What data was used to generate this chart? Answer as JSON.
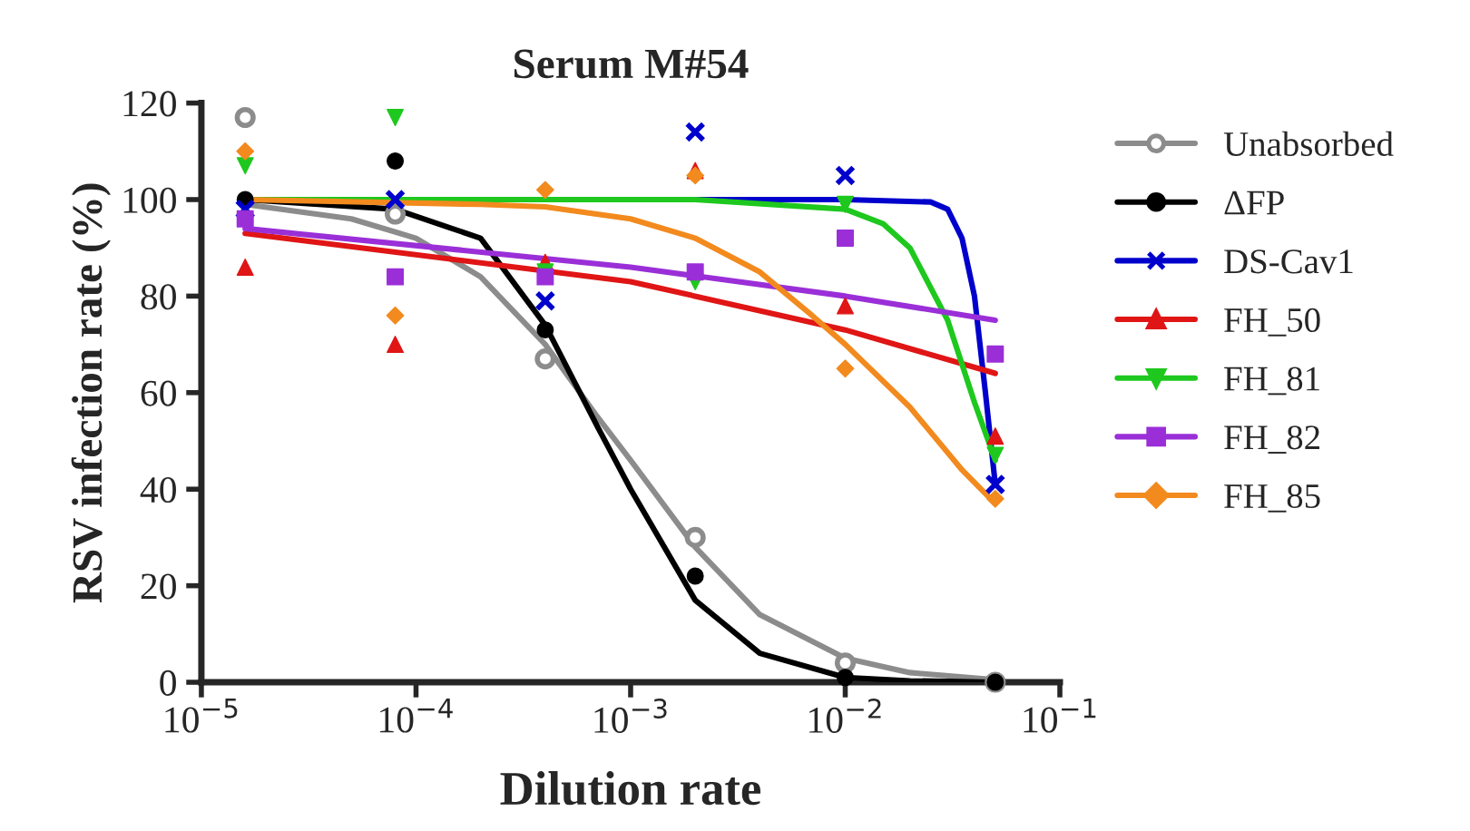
{
  "chart_data": {
    "type": "scatter",
    "title": "Serum M#54",
    "xlabel": "Dilution rate",
    "ylabel": "RSV infection rate (%)",
    "log": "x",
    "xlim": [
      1e-05,
      0.1
    ],
    "ylim": [
      0,
      120
    ],
    "xticks": [
      {
        "value": 1e-05,
        "label": "10$^{−5}$"
      },
      {
        "value": 0.0001,
        "label": "10$^{−4}$"
      },
      {
        "value": 0.001,
        "label": "10$^{−3}$"
      },
      {
        "value": 0.01,
        "label": "10$^{−2}$"
      },
      {
        "value": 0.1,
        "label": "10$^{−1}$"
      }
    ],
    "yticks": [
      0,
      20,
      40,
      60,
      80,
      100,
      120
    ],
    "grid": false,
    "legend": "right",
    "x": [
      1.6e-05,
      8e-05,
      0.0004,
      0.002,
      0.01,
      0.05
    ],
    "series": [
      {
        "name": "Unabsorbed",
        "marker": "circle_open",
        "color": "#8c8c8c",
        "values": [
          117,
          97,
          67,
          30,
          4,
          0
        ]
      },
      {
        "name": "ΔFP",
        "marker": "circle",
        "color": "#000000",
        "values": [
          100,
          108,
          73,
          22,
          1,
          0
        ]
      },
      {
        "name": "DS-Cav1",
        "marker": "cross",
        "color": "#0000cc",
        "values": [
          98,
          100,
          79,
          114,
          105,
          41
        ]
      },
      {
        "name": "FH_50",
        "marker": "triangle",
        "color": "#e01515",
        "values": [
          86,
          70,
          87,
          106,
          78,
          51
        ]
      },
      {
        "name": "FH_81",
        "marker": "triangle_down",
        "color": "#1ec81e",
        "values": [
          107,
          117,
          85,
          83,
          99,
          47
        ]
      },
      {
        "name": "FH_82",
        "marker": "square",
        "color": "#9a2fd8",
        "values": [
          96,
          84,
          84,
          85,
          92,
          68
        ]
      },
      {
        "name": "FH_85",
        "marker": "diamond",
        "color": "#f28a1e",
        "values": [
          110,
          76,
          102,
          105,
          65,
          38
        ]
      },
      {
        "type": "line",
        "color": "#8c8c8c",
        "x": [
          1.6e-05,
          5e-05,
          0.0001,
          0.0002,
          0.0004,
          0.0007,
          0.001,
          0.002,
          0.004,
          0.01,
          0.02,
          0.05
        ],
        "values": [
          99,
          96,
          92,
          84,
          70,
          55,
          46,
          28,
          14,
          5,
          2,
          0.5
        ]
      },
      {
        "type": "line",
        "color": "#000000",
        "x": [
          1.6e-05,
          8e-05,
          0.0002,
          0.0004,
          0.0007,
          0.001,
          0.002,
          0.004,
          0.01,
          0.02,
          0.05
        ],
        "values": [
          100,
          98,
          92,
          74,
          53,
          40,
          17,
          6,
          1,
          0.3,
          0
        ]
      },
      {
        "type": "line",
        "color": "#0000cc",
        "x": [
          1.6e-05,
          0.01,
          0.025,
          0.03,
          0.035,
          0.04,
          0.045,
          0.05
        ],
        "values": [
          100,
          100,
          99.5,
          98,
          92,
          80,
          60,
          41
        ]
      },
      {
        "type": "line",
        "color": "#e01515",
        "x": [
          1.6e-05,
          0.001,
          0.01,
          0.05
        ],
        "values": [
          93,
          83,
          73,
          64
        ]
      },
      {
        "type": "line",
        "color": "#1ec81e",
        "x": [
          1.6e-05,
          0.002,
          0.01,
          0.015,
          0.02,
          0.03,
          0.04,
          0.05
        ],
        "values": [
          100,
          100,
          98,
          95,
          90,
          75,
          58,
          46
        ]
      },
      {
        "type": "line",
        "color": "#9a2fd8",
        "x": [
          1.6e-05,
          0.001,
          0.01,
          0.05
        ],
        "values": [
          94,
          86,
          80,
          75
        ]
      },
      {
        "type": "line",
        "color": "#f28a1e",
        "x": [
          1.6e-05,
          0.0002,
          0.0004,
          0.001,
          0.002,
          0.004,
          0.007,
          0.01,
          0.02,
          0.035,
          0.05
        ],
        "values": [
          100,
          99,
          98.5,
          96,
          92,
          85,
          76,
          70,
          57,
          44,
          37
        ]
      }
    ]
  }
}
